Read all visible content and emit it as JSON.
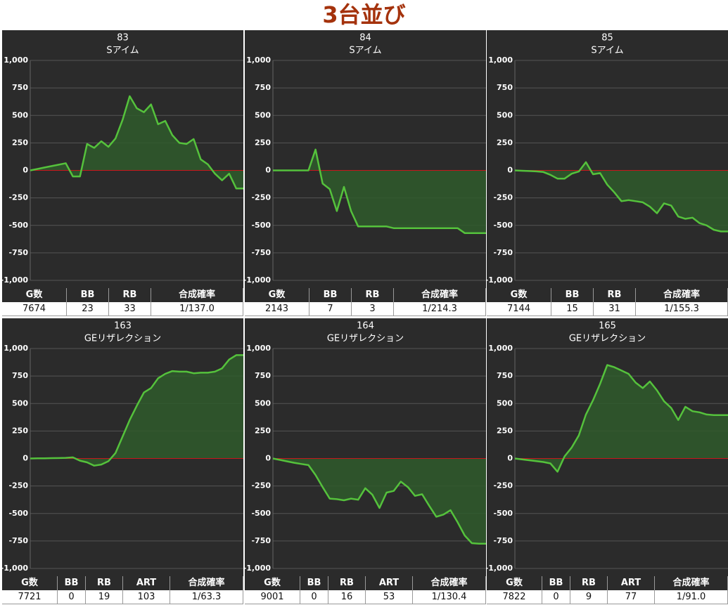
{
  "title": "3台並び",
  "chart_data": [
    {
      "type": "line",
      "title": "83",
      "subtitle": "Sアイム",
      "color": "#55c23c",
      "area_color": "#2f5a2c",
      "zero_line_color": "#c8161d",
      "grid": true,
      "ylim": [
        -1000,
        1000
      ],
      "yticks": [
        {
          "value": 1000,
          "label": "1,000"
        },
        750,
        500,
        250,
        0,
        -250,
        -500,
        -750,
        {
          "value": -1000,
          "label": "-1,000"
        }
      ],
      "values": [
        0,
        13,
        26,
        39,
        52,
        65,
        -55,
        -55,
        240,
        205,
        265,
        215,
        290,
        460,
        675,
        565,
        530,
        600,
        420,
        450,
        320,
        250,
        240,
        285,
        100,
        55,
        -30,
        -90,
        -30,
        -165,
        -165
      ],
      "table": {
        "columns": [
          "G数",
          "BB",
          "RB",
          "合成確率"
        ],
        "row": [
          7674,
          23,
          33,
          "1/137.0"
        ]
      }
    },
    {
      "type": "line",
      "title": "84",
      "subtitle": "Sアイム",
      "color": "#55c23c",
      "area_color": "#2f5a2c",
      "zero_line_color": "#c8161d",
      "grid": true,
      "ylim": [
        -1000,
        1000
      ],
      "yticks": [
        {
          "value": 1000,
          "label": "1,000"
        },
        750,
        500,
        250,
        0,
        -250,
        -500,
        -750,
        {
          "value": -1000,
          "label": "-1,000"
        }
      ],
      "values": [
        0,
        0,
        0,
        0,
        0,
        0,
        190,
        -120,
        -170,
        -370,
        -150,
        -370,
        -510,
        -510,
        -510,
        -510,
        -510,
        -525,
        -525,
        -525,
        -525,
        -525,
        -525,
        -525,
        -525,
        -525,
        -525,
        -570,
        -570,
        -570,
        -570
      ],
      "table": {
        "columns": [
          "G数",
          "BB",
          "RB",
          "合成確率"
        ],
        "row": [
          2143,
          7,
          3,
          "1/214.3"
        ]
      }
    },
    {
      "type": "line",
      "title": "85",
      "subtitle": "Sアイム",
      "color": "#55c23c",
      "area_color": "#2f5a2c",
      "zero_line_color": "#c8161d",
      "grid": true,
      "ylim": [
        -1000,
        1000
      ],
      "yticks": [
        {
          "value": 1000,
          "label": "1,000"
        },
        750,
        500,
        250,
        0,
        -250,
        -500,
        -750,
        {
          "value": -1000,
          "label": "-1,000"
        }
      ],
      "values": [
        0,
        -3,
        -6,
        -9,
        -15,
        -40,
        -75,
        -75,
        -30,
        -10,
        75,
        -35,
        -25,
        -130,
        -200,
        -280,
        -270,
        -280,
        -290,
        -330,
        -390,
        -300,
        -320,
        -420,
        -440,
        -430,
        -480,
        -500,
        -540,
        -555,
        -555
      ],
      "table": {
        "columns": [
          "G数",
          "BB",
          "RB",
          "合成確率"
        ],
        "row": [
          7144,
          15,
          31,
          "1/155.3"
        ]
      }
    },
    {
      "type": "line",
      "title": "163",
      "subtitle": "GEリザレクション",
      "color": "#55c23c",
      "area_color": "#2f5a2c",
      "zero_line_color": "#c8161d",
      "grid": true,
      "ylim": [
        -1000,
        1000
      ],
      "yticks": [
        {
          "value": 1000,
          "label": "1,000"
        },
        750,
        500,
        250,
        0,
        -250,
        -500,
        -750,
        {
          "value": -1000,
          "label": "-1,000"
        }
      ],
      "values": [
        0,
        1,
        2,
        3,
        4,
        6,
        10,
        -20,
        -35,
        -65,
        -55,
        -25,
        50,
        200,
        350,
        480,
        600,
        640,
        730,
        770,
        795,
        790,
        790,
        775,
        780,
        780,
        790,
        820,
        900,
        940,
        940
      ],
      "table": {
        "columns": [
          "G数",
          "BB",
          "RB",
          "ART",
          "合成確率"
        ],
        "row": [
          7721,
          0,
          19,
          103,
          "1/63.3"
        ]
      }
    },
    {
      "type": "line",
      "title": "164",
      "subtitle": "GEリザレクション",
      "color": "#55c23c",
      "area_color": "#2f5a2c",
      "zero_line_color": "#c8161d",
      "grid": true,
      "ylim": [
        -1000,
        1000
      ],
      "yticks": [
        {
          "value": 1000,
          "label": "1,000"
        },
        750,
        500,
        250,
        0,
        -250,
        -500,
        -750,
        {
          "value": -1000,
          "label": "-1,000"
        }
      ],
      "values": [
        0,
        -13,
        -26,
        -39,
        -50,
        -60,
        -150,
        -260,
        -365,
        -370,
        -380,
        -365,
        -375,
        -270,
        -330,
        -450,
        -310,
        -295,
        -210,
        -260,
        -340,
        -325,
        -430,
        -530,
        -510,
        -470,
        -580,
        -700,
        -770,
        -775,
        -775
      ],
      "table": {
        "columns": [
          "G数",
          "BB",
          "RB",
          "ART",
          "合成確率"
        ],
        "row": [
          9001,
          0,
          16,
          53,
          "1/130.4"
        ]
      }
    },
    {
      "type": "line",
      "title": "165",
      "subtitle": "GEリザレクション",
      "color": "#55c23c",
      "area_color": "#2f5a2c",
      "zero_line_color": "#c8161d",
      "grid": true,
      "ylim": [
        -1000,
        1000
      ],
      "yticks": [
        {
          "value": 1000,
          "label": "1,000"
        },
        750,
        500,
        250,
        0,
        -250,
        -500,
        -750,
        {
          "value": -1000,
          "label": "-1,000"
        }
      ],
      "values": [
        0,
        -8,
        -16,
        -24,
        -32,
        -45,
        -120,
        20,
        100,
        210,
        400,
        530,
        680,
        850,
        830,
        800,
        770,
        690,
        640,
        700,
        620,
        520,
        460,
        350,
        470,
        430,
        420,
        400,
        395,
        395,
        395
      ],
      "table": {
        "columns": [
          "G数",
          "BB",
          "RB",
          "ART",
          "合成確率"
        ],
        "row": [
          7822,
          0,
          9,
          77,
          "1/91.0"
        ]
      }
    }
  ]
}
